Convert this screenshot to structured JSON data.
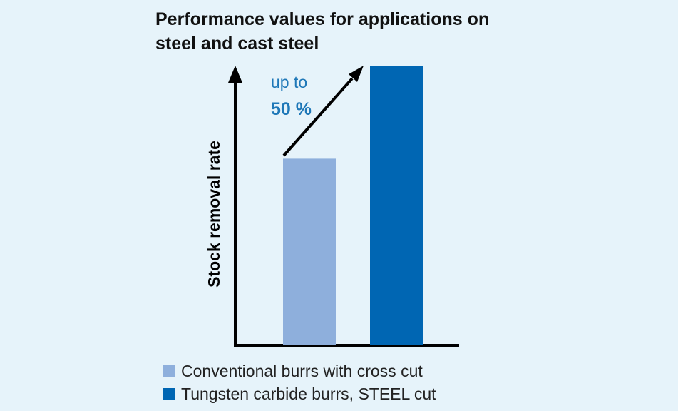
{
  "chart_data": {
    "type": "bar",
    "title_lines": [
      "Performance values for applications on",
      "steel and cast steel"
    ],
    "ylabel": "Stock removal rate",
    "xlabel": "",
    "ylim": [
      0,
      1.65
    ],
    "grid": false,
    "series": [
      {
        "name": "Conventional burrs with cross cut",
        "value": 1.0,
        "color": "#8eafdc"
      },
      {
        "name": "Tungsten carbide burrs, STEEL cut",
        "value": 1.5,
        "color": "#0066b3"
      }
    ],
    "annotation": {
      "line1": "up to",
      "line2": "50 %",
      "color": "#1f78b8"
    },
    "legend_position": "bottom"
  }
}
